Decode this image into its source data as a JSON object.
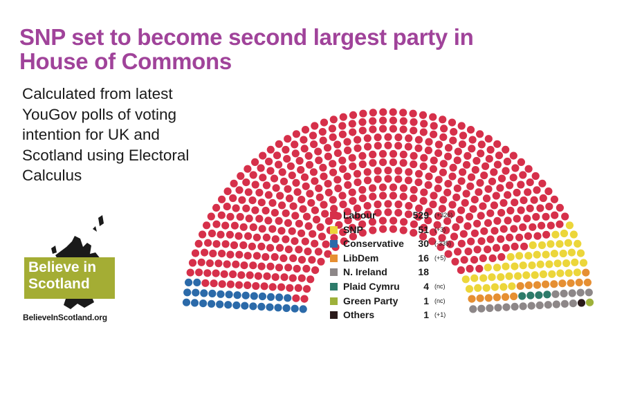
{
  "header": {
    "title": "SNP set to become second largest party in House of Commons",
    "subtitle": "Calculated from latest YouGov polls of voting intention for UK and Scotland using Electoral Calculus"
  },
  "branding": {
    "logo_text": "Believe in Scotland",
    "logo_color": "#a4ad34",
    "map_color": "#1a1a1a",
    "url": "BelieveInScotland.org"
  },
  "chart_data": {
    "type": "parliament",
    "total_seats": 650,
    "series": [
      {
        "name": "Labour",
        "seats": 529,
        "change": "(+326)",
        "color": "#d6304a"
      },
      {
        "name": "SNP",
        "seats": 51,
        "change": "(+3)",
        "color": "#ecd63a"
      },
      {
        "name": "Conservative",
        "seats": 30,
        "change": "(-335)",
        "color": "#2b6aa9"
      },
      {
        "name": "LibDem",
        "seats": 16,
        "change": "(+5)",
        "color": "#e68f32"
      },
      {
        "name": "N. Ireland",
        "seats": 18,
        "change": "",
        "color": "#8d8788"
      },
      {
        "name": "Plaid Cymru",
        "seats": 4,
        "change": "(nc)",
        "color": "#2d7b6a"
      },
      {
        "name": "Green Party",
        "seats": 1,
        "change": "(nc)",
        "color": "#9eb13a"
      },
      {
        "name": "Others",
        "seats": 1,
        "change": "(+1)",
        "color": "#2a1a1a"
      }
    ],
    "seat_order": [
      "Conservative",
      "Labour",
      "SNP",
      "LibDem",
      "Plaid Cymru",
      "N. Ireland",
      "Others",
      "Green Party"
    ]
  }
}
